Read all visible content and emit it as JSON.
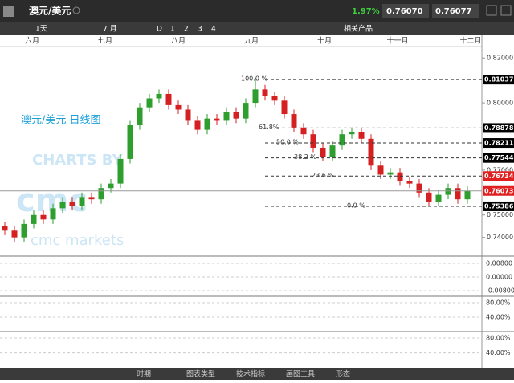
{
  "header": {
    "title": "澳元/美元",
    "change": "1.97%",
    "bid": "0.76070",
    "ask": "0.76077"
  },
  "toolbar": {
    "period": "1天",
    "range": "7 月",
    "views": [
      "D",
      "1",
      "2",
      "3",
      "4"
    ],
    "related": "相关产品"
  },
  "chart_data": {
    "type": "candlestick",
    "title": "澳元/美元 日线图",
    "watermark": [
      "CHARTS BY",
      "cmc",
      "cmc markets"
    ],
    "months": [
      "六月",
      "七月",
      "八月",
      "九月",
      "十月",
      "十一月",
      "十二月"
    ],
    "open": [
      0.745,
      0.743,
      0.74,
      0.746,
      0.75,
      0.748,
      0.753,
      0.756,
      0.754,
      0.758,
      0.757,
      0.762,
      0.764,
      0.775,
      0.79,
      0.798,
      0.802,
      0.804,
      0.799,
      0.797,
      0.792,
      0.788,
      0.793,
      0.792,
      0.796,
      0.793,
      0.8,
      0.806,
      0.803,
      0.801,
      0.795,
      0.789,
      0.786,
      0.78,
      0.776,
      0.781,
      0.786,
      0.787,
      0.784,
      0.772,
      0.768,
      0.769,
      0.765,
      0.764,
      0.76,
      0.756,
      0.759,
      0.762,
      0.757
    ],
    "high": [
      0.747,
      0.745,
      0.748,
      0.752,
      0.752,
      0.755,
      0.758,
      0.758,
      0.76,
      0.76,
      0.764,
      0.766,
      0.777,
      0.792,
      0.8,
      0.804,
      0.806,
      0.806,
      0.801,
      0.799,
      0.794,
      0.795,
      0.795,
      0.798,
      0.798,
      0.802,
      0.811,
      0.808,
      0.805,
      0.803,
      0.797,
      0.791,
      0.788,
      0.782,
      0.783,
      0.788,
      0.789,
      0.789,
      0.786,
      0.774,
      0.771,
      0.771,
      0.767,
      0.766,
      0.762,
      0.761,
      0.764,
      0.764,
      0.7627
    ],
    "low": [
      0.741,
      0.738,
      0.738,
      0.744,
      0.746,
      0.746,
      0.751,
      0.752,
      0.752,
      0.755,
      0.755,
      0.76,
      0.762,
      0.773,
      0.788,
      0.796,
      0.8,
      0.797,
      0.795,
      0.79,
      0.786,
      0.786,
      0.79,
      0.79,
      0.791,
      0.791,
      0.798,
      0.801,
      0.799,
      0.793,
      0.787,
      0.784,
      0.778,
      0.774,
      0.774,
      0.779,
      0.784,
      0.782,
      0.77,
      0.766,
      0.766,
      0.763,
      0.762,
      0.758,
      0.754,
      0.754,
      0.757,
      0.755,
      0.755
    ],
    "close": [
      0.743,
      0.74,
      0.746,
      0.75,
      0.748,
      0.753,
      0.756,
      0.754,
      0.758,
      0.757,
      0.762,
      0.764,
      0.775,
      0.79,
      0.798,
      0.802,
      0.804,
      0.799,
      0.797,
      0.792,
      0.788,
      0.793,
      0.792,
      0.796,
      0.793,
      0.8,
      0.806,
      0.803,
      0.801,
      0.795,
      0.789,
      0.786,
      0.78,
      0.776,
      0.781,
      0.786,
      0.787,
      0.784,
      0.772,
      0.768,
      0.769,
      0.765,
      0.764,
      0.76,
      0.756,
      0.759,
      0.762,
      0.757,
      0.7607
    ],
    "up_color": "#2e9e2e",
    "down_color": "#d42020",
    "ylim": [
      0.732,
      0.8251
    ],
    "yticks": [
      {
        "value": 0.82,
        "label": "0.82000"
      },
      {
        "value": 0.8,
        "label": "0.80000"
      },
      {
        "value": 0.77,
        "label": "0.77000"
      },
      {
        "value": 0.75,
        "label": "0.75000"
      },
      {
        "value": 0.74,
        "label": "0.74000"
      }
    ],
    "price_levels": [
      {
        "value": 0.81037,
        "fib": "100.0 %",
        "color": "#000000"
      },
      {
        "value": 0.78878,
        "fib": "61.8%",
        "color": "#000000"
      },
      {
        "value": 0.78211,
        "fib": "50.0 %",
        "color": "#000000"
      },
      {
        "value": 0.77544,
        "fib": "38.2 %",
        "color": "#000000"
      },
      {
        "value": 0.76734,
        "fib": "23.6 %",
        "color": "#e02020"
      },
      {
        "value": 0.760735,
        "color": "#e02020"
      },
      {
        "value": 0.75386,
        "fib": "0.0 %",
        "color": "#000000"
      }
    ]
  },
  "indicators": [
    {
      "ticks": [
        "0.00800",
        "0.00000",
        "-0.00800"
      ]
    },
    {
      "ticks": [
        "80.00%",
        "40.00%"
      ]
    },
    {
      "ticks": [
        "80.00%",
        "40.00%"
      ]
    }
  ],
  "footer": {
    "items": [
      "时期",
      "图表类型",
      "技术指标",
      "画图工具",
      "形态"
    ]
  }
}
